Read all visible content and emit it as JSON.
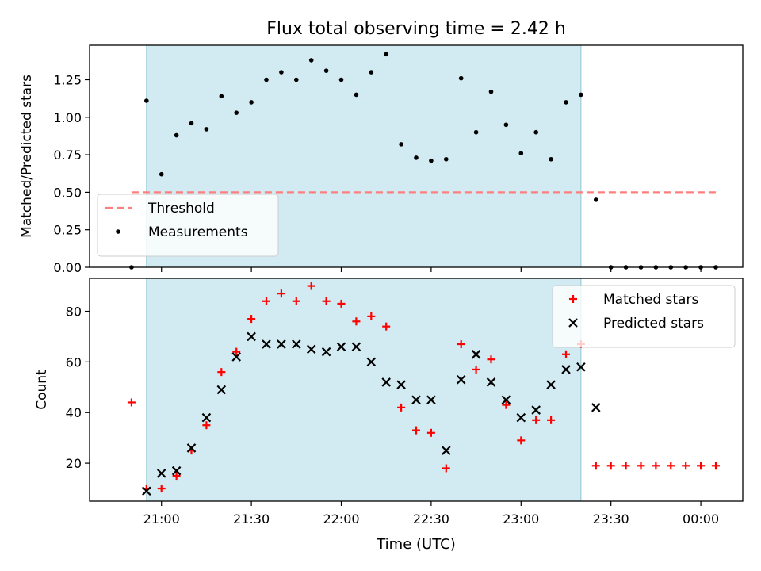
{
  "figure": {
    "title": "Flux total observing time = 2.42 h",
    "xlabel": "Time (UTC)",
    "x_ticks": [
      "21:00",
      "21:30",
      "22:00",
      "22:30",
      "23:00",
      "23:30",
      "00:00"
    ],
    "shaded_window": {
      "start": "20:55",
      "end": "23:20",
      "color": "#add8e6"
    }
  },
  "chart_data": [
    {
      "type": "scatter",
      "ylabel": "Matched/Predicted stars",
      "ylim": [
        0,
        1.48
      ],
      "y_ticks": [
        "0.00",
        "0.25",
        "0.50",
        "0.75",
        "1.00",
        "1.25"
      ],
      "legend_placement": "lower-left",
      "series": [
        {
          "name": "Threshold",
          "kind": "line",
          "style": "dashed",
          "color": "#ff7f7f",
          "x": [
            "20:50",
            "00:05"
          ],
          "y": [
            0.5,
            0.5
          ]
        },
        {
          "name": "Measurements",
          "kind": "points",
          "marker": "dot",
          "color": "#000000",
          "x": [
            "20:50",
            "20:55",
            "21:00",
            "21:05",
            "21:10",
            "21:15",
            "21:20",
            "21:25",
            "21:30",
            "21:35",
            "21:40",
            "21:45",
            "21:50",
            "21:55",
            "22:00",
            "22:05",
            "22:10",
            "22:15",
            "22:20",
            "22:25",
            "22:30",
            "22:35",
            "22:40",
            "22:45",
            "22:50",
            "22:55",
            "23:00",
            "23:05",
            "23:10",
            "23:15",
            "23:20",
            "23:25",
            "23:30",
            "23:35",
            "23:40",
            "23:45",
            "23:50",
            "23:55",
            "00:00",
            "00:05"
          ],
          "y": [
            0.0,
            1.11,
            0.62,
            0.88,
            0.96,
            0.92,
            1.14,
            1.03,
            1.1,
            1.25,
            1.3,
            1.25,
            1.38,
            1.31,
            1.25,
            1.15,
            1.3,
            1.42,
            0.82,
            0.73,
            0.71,
            0.72,
            1.26,
            0.9,
            1.17,
            0.95,
            0.76,
            0.9,
            0.72,
            1.1,
            1.15,
            0.45,
            0.0,
            0.0,
            0.0,
            0.0,
            0.0,
            0.0,
            0.0,
            0.0
          ]
        }
      ]
    },
    {
      "type": "scatter",
      "ylabel": "Count",
      "ylim": [
        5,
        93
      ],
      "y_ticks": [
        "20",
        "40",
        "60",
        "80"
      ],
      "legend_placement": "top-right",
      "series": [
        {
          "name": "Matched stars",
          "kind": "points",
          "marker": "plus",
          "color": "#ff0000",
          "x": [
            "20:50",
            "20:55",
            "21:00",
            "21:05",
            "21:10",
            "21:15",
            "21:20",
            "21:25",
            "21:30",
            "21:35",
            "21:40",
            "21:45",
            "21:50",
            "21:55",
            "22:00",
            "22:05",
            "22:10",
            "22:15",
            "22:20",
            "22:25",
            "22:30",
            "22:35",
            "22:40",
            "22:45",
            "22:50",
            "22:55",
            "23:00",
            "23:05",
            "23:10",
            "23:15",
            "23:20",
            "23:25",
            "23:30",
            "23:35",
            "23:40",
            "23:45",
            "23:50",
            "23:55",
            "00:00",
            "00:05"
          ],
          "y": [
            44,
            10,
            10,
            15,
            25,
            35,
            56,
            64,
            77,
            84,
            87,
            84,
            90,
            84,
            83,
            76,
            78,
            74,
            42,
            33,
            32,
            18,
            67,
            57,
            61,
            43,
            29,
            37,
            37,
            63,
            67,
            19,
            19,
            19,
            19,
            19,
            19,
            19,
            19,
            19
          ]
        },
        {
          "name": "Predicted stars",
          "kind": "points",
          "marker": "x",
          "color": "#000000",
          "x": [
            "20:55",
            "21:00",
            "21:05",
            "21:10",
            "21:15",
            "21:20",
            "21:25",
            "21:30",
            "21:35",
            "21:40",
            "21:45",
            "21:50",
            "21:55",
            "22:00",
            "22:05",
            "22:10",
            "22:15",
            "22:20",
            "22:25",
            "22:30",
            "22:35",
            "22:40",
            "22:45",
            "22:50",
            "22:55",
            "23:00",
            "23:05",
            "23:10",
            "23:15",
            "23:20",
            "23:25"
          ],
          "y": [
            9,
            16,
            17,
            26,
            38,
            49,
            62,
            70,
            67,
            67,
            67,
            65,
            64,
            66,
            66,
            60,
            52,
            51,
            45,
            45,
            25,
            53,
            63,
            52,
            45,
            38,
            41,
            51,
            57,
            58,
            42
          ]
        }
      ]
    }
  ]
}
